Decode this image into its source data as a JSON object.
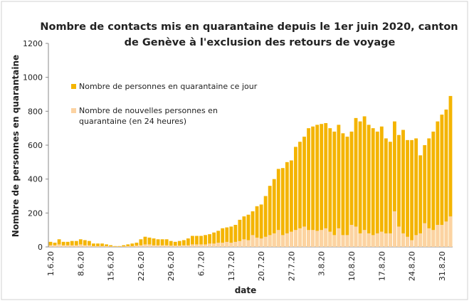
{
  "chart_data": {
    "type": "bar",
    "title": [
      "Nombre de contacts mis en quarantaine depuis le 1er juin 2020, canton",
      "de Genève à l'exclusion des retours de voyage"
    ],
    "x_label": "date",
    "y_label": "Nombre de personnes en quarantaine",
    "categories": [
      "1.6.20",
      null,
      null,
      null,
      null,
      null,
      null,
      "8.6.20",
      null,
      null,
      null,
      null,
      null,
      null,
      "15.6.20",
      null,
      null,
      null,
      null,
      null,
      null,
      "22.6.20",
      null,
      null,
      null,
      null,
      null,
      null,
      "29.6.20",
      null,
      null,
      null,
      null,
      null,
      null,
      "6.7.20",
      null,
      null,
      null,
      null,
      null,
      null,
      "13.7.20",
      null,
      null,
      null,
      null,
      null,
      null,
      "20.7.20",
      null,
      null,
      null,
      null,
      null,
      null,
      "27.7.20",
      null,
      null,
      null,
      null,
      null,
      null,
      "3.8.20",
      null,
      null,
      null,
      null,
      null,
      null,
      "10.8.20",
      null,
      null,
      null,
      null,
      null,
      null,
      "17.8.20",
      null,
      null,
      null,
      null,
      null,
      null,
      "24.8.20",
      null,
      null,
      null,
      null,
      null,
      null,
      "31.8.20",
      null,
      null
    ],
    "series": [
      {
        "name": "Nombre de personnes en quarantaine ce jour",
        "color": "#f4b400",
        "values": [
          30,
          25,
          45,
          30,
          30,
          35,
          35,
          45,
          40,
          35,
          20,
          20,
          20,
          15,
          10,
          5,
          5,
          10,
          15,
          20,
          25,
          45,
          60,
          55,
          50,
          45,
          45,
          45,
          35,
          30,
          35,
          40,
          50,
          65,
          65,
          65,
          70,
          75,
          85,
          95,
          110,
          115,
          120,
          130,
          160,
          180,
          190,
          210,
          240,
          250,
          300,
          360,
          400,
          460,
          465,
          500,
          510,
          590,
          620,
          650,
          700,
          710,
          720,
          725,
          730,
          700,
          680,
          720,
          670,
          650,
          680,
          760,
          740,
          770,
          720,
          700,
          680,
          710,
          640,
          620,
          740,
          660,
          690,
          630,
          630,
          640,
          540,
          600,
          640,
          680,
          740,
          780,
          810,
          890
        ]
      },
      {
        "name": "Nombre de nouvelles personnes en quarantaine (en 24 heures)",
        "color": "#fcd3a2",
        "values": [
          10,
          10,
          15,
          10,
          10,
          10,
          10,
          15,
          10,
          10,
          5,
          5,
          5,
          5,
          3,
          2,
          2,
          3,
          5,
          5,
          8,
          10,
          15,
          15,
          10,
          10,
          10,
          10,
          8,
          8,
          8,
          10,
          10,
          15,
          15,
          15,
          15,
          20,
          20,
          25,
          25,
          30,
          25,
          30,
          35,
          45,
          40,
          70,
          55,
          50,
          60,
          70,
          80,
          100,
          70,
          80,
          90,
          100,
          110,
          120,
          100,
          100,
          95,
          100,
          110,
          90,
          70,
          110,
          70,
          70,
          130,
          120,
          80,
          100,
          80,
          70,
          80,
          90,
          80,
          80,
          210,
          120,
          80,
          60,
          40,
          70,
          80,
          140,
          110,
          100,
          130,
          130,
          150,
          180
        ]
      }
    ],
    "ylim": [
      0,
      1200
    ],
    "yticks": [
      0,
      200,
      400,
      600,
      800,
      1000,
      1200
    ]
  }
}
